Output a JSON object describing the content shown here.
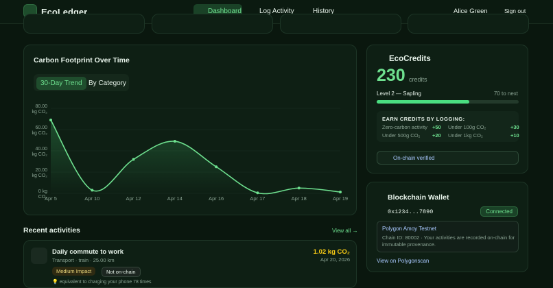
{
  "nav": {
    "brand": "EcoLedger",
    "links": [
      "Dashboard",
      "Log Activity",
      "History"
    ],
    "user": "Alice Green",
    "sign_out": "Sign out"
  },
  "carbon_chart": {
    "type": "line",
    "title": "Carbon Footprint Over Time",
    "tabs": [
      "30-Day Trend",
      "By Category"
    ],
    "categories": [
      "Apr 5",
      "Apr 10",
      "Apr 12",
      "Apr 14",
      "Apr 16",
      "Apr 17",
      "Apr 18",
      "Apr 19"
    ],
    "values": [
      69,
      3,
      32,
      49,
      25,
      0.5,
      5,
      1.3
    ],
    "color": "#6ee08f",
    "ylim": [
      0,
      80
    ],
    "yticks": [
      {
        "value": 0,
        "label": "0 kg CO₂"
      },
      {
        "value": 20,
        "label": "20.00 kg CO₂"
      },
      {
        "value": 40,
        "label": "40.00 kg CO₂"
      },
      {
        "value": 60,
        "label": "60.00 kg CO₂"
      },
      {
        "value": 80,
        "label": "80.00 kg CO₂"
      }
    ],
    "grid": true
  },
  "credits": {
    "title": "EcoCredits",
    "amount": "230",
    "unit": "credits",
    "level": "Level 2 — Sapling",
    "to_next": "70 to next",
    "progress": 65,
    "earn_title": "EARN CREDITS BY LOGGING:",
    "rules": [
      [
        "Zero-carbon activity",
        "+50"
      ],
      [
        "Under 100g CO₂",
        "+30"
      ],
      [
        "Under 500g CO₂",
        "+20"
      ],
      [
        "Under 1kg CO₂",
        "+10"
      ]
    ],
    "verified": "On-chain verified"
  },
  "wallet": {
    "title": "Blockchain Wallet",
    "address": "0x1234...7890",
    "status": "Connected",
    "network": "Polygon Amoy Testnet",
    "note": "Chain ID: 80002 · Your activities are recorded on-chain for immutable provenance.",
    "link": "View on Polygonscan"
  },
  "activities": {
    "title": "Recent activities",
    "view_all": "View all →",
    "items": [
      {
        "name": "Daily commute to work",
        "meta": "Transport · train · 25.00 km",
        "amount": "1.02 kg CO₂",
        "date": "Apr 20, 2026",
        "impact": "Medium Impact",
        "chain": "Not on-chain",
        "tip": "💡 equivalent to charging your phone 78 times"
      }
    ]
  }
}
